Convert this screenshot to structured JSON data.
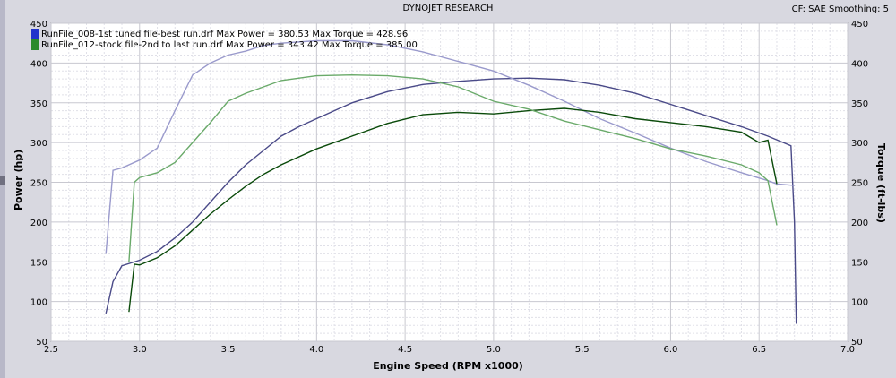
{
  "header": {
    "title": "DYNOJET RESEARCH",
    "cf_info": "CF: SAE  Smoothing: 5"
  },
  "legend": [
    {
      "label": "RunFile_008-1st tuned file-best run.drf Max Power = 380.53 Max Torque = 428.96",
      "color": "#2233cc"
    },
    {
      "label": "RunFile_012-stock file-2nd to last run.drf Max Power = 343.42 Max Torque = 385.00",
      "color": "#2a8a2a"
    }
  ],
  "chart_data": {
    "type": "line",
    "title": "DYNOJET RESEARCH",
    "xlabel": "Engine Speed (RPM x1000)",
    "ylabel": "Power (hp)",
    "y2label": "Torque (ft-lbs)",
    "xlim": [
      2.5,
      7.0
    ],
    "ylim": [
      50,
      450
    ],
    "y2lim": [
      50,
      450
    ],
    "x_ticks": [
      "2.5",
      "3.0",
      "3.5",
      "4.0",
      "4.5",
      "5.0",
      "5.5",
      "6.0",
      "6.5",
      "7.0"
    ],
    "y_ticks": [
      "50",
      "100",
      "150",
      "200",
      "250",
      "300",
      "350",
      "400",
      "450"
    ],
    "grid": true,
    "series": [
      {
        "name": "RunFile_008 Power",
        "color": "#4a4a88",
        "x": [
          2.81,
          2.85,
          2.9,
          3.0,
          3.1,
          3.2,
          3.3,
          3.4,
          3.5,
          3.6,
          3.7,
          3.8,
          3.9,
          4.0,
          4.2,
          4.4,
          4.6,
          4.8,
          5.0,
          5.2,
          5.4,
          5.6,
          5.8,
          6.0,
          6.2,
          6.4,
          6.55,
          6.68,
          6.7,
          6.71
        ],
        "y": [
          85,
          125,
          145,
          152,
          163,
          180,
          200,
          225,
          250,
          272,
          290,
          308,
          320,
          330,
          350,
          364,
          373,
          377,
          380,
          381,
          379,
          372,
          362,
          348,
          334,
          320,
          308,
          296,
          200,
          72
        ]
      },
      {
        "name": "RunFile_008 Torque",
        "color": "#9a9acc",
        "x": [
          2.81,
          2.85,
          2.9,
          3.0,
          3.1,
          3.2,
          3.3,
          3.4,
          3.5,
          3.6,
          3.7,
          3.8,
          4.0,
          4.2,
          4.4,
          4.6,
          4.8,
          5.0,
          5.2,
          5.4,
          5.6,
          5.8,
          6.0,
          6.2,
          6.4,
          6.55,
          6.6,
          6.7
        ],
        "y": [
          160,
          265,
          268,
          278,
          293,
          340,
          385,
          400,
          410,
          415,
          422,
          425,
          428,
          428,
          423,
          414,
          402,
          390,
          372,
          352,
          330,
          312,
          293,
          276,
          262,
          252,
          248,
          246
        ]
      },
      {
        "name": "RunFile_012 Power",
        "color": "#0a4a0a",
        "x": [
          2.94,
          2.97,
          3.0,
          3.1,
          3.2,
          3.3,
          3.4,
          3.5,
          3.6,
          3.7,
          3.8,
          4.0,
          4.2,
          4.4,
          4.6,
          4.8,
          5.0,
          5.2,
          5.4,
          5.6,
          5.8,
          6.0,
          6.2,
          6.4,
          6.5,
          6.55,
          6.6
        ],
        "y": [
          87,
          147,
          146,
          155,
          170,
          190,
          210,
          228,
          245,
          260,
          272,
          292,
          308,
          324,
          335,
          338,
          336,
          340,
          343,
          338,
          330,
          325,
          320,
          313,
          300,
          303,
          248
        ]
      },
      {
        "name": "RunFile_012 Torque",
        "color": "#6aaa6a",
        "x": [
          2.94,
          2.97,
          3.0,
          3.1,
          3.2,
          3.3,
          3.4,
          3.5,
          3.6,
          3.7,
          3.8,
          4.0,
          4.2,
          4.4,
          4.6,
          4.8,
          5.0,
          5.2,
          5.4,
          5.6,
          5.8,
          6.0,
          6.2,
          6.4,
          6.5,
          6.55,
          6.6
        ],
        "y": [
          150,
          250,
          256,
          262,
          275,
          300,
          325,
          352,
          362,
          370,
          378,
          384,
          385,
          384,
          380,
          370,
          352,
          342,
          327,
          316,
          305,
          292,
          283,
          272,
          262,
          252,
          196
        ]
      }
    ]
  }
}
